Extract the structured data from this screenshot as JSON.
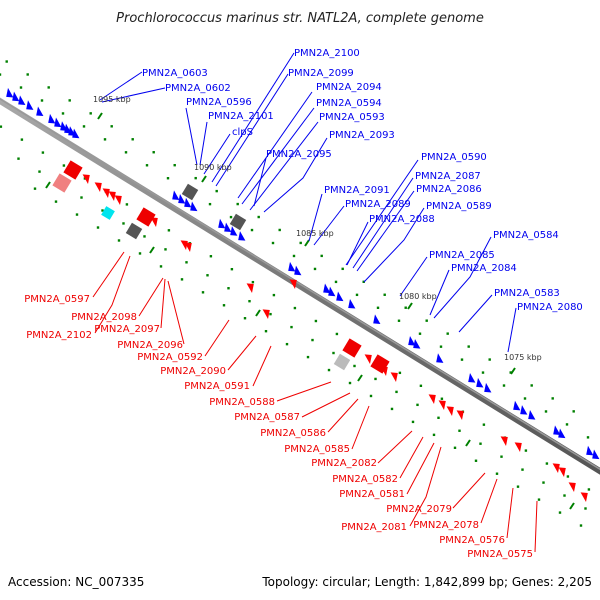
{
  "title": "Prochlorococcus marinus str. NATL2A, complete genome",
  "footer": {
    "accession": "Accession: NC_007335",
    "summary": "Topology: circular; Length: 1,842,899 bp; Genes: 2,205"
  },
  "colors": {
    "forward_gene": "#0000ff",
    "reverse_gene": "#ff0000",
    "backbone": "#808080",
    "tick": "#008000",
    "rna": "#00e5ee",
    "other": "#666666"
  },
  "kbp_labels": [
    "1095 kbp",
    "1090 kbp",
    "1085 kbp",
    "1080 kbp",
    "1075 kbp"
  ],
  "forward_labels": [
    "PMN2A_0603",
    "PMN2A_0602",
    "PMN2A_0596",
    "PMN2A_2101",
    "clpS",
    "PMN2A_2100",
    "PMN2A_2099",
    "PMN2A_2094",
    "PMN2A_0594",
    "PMN2A_0593",
    "PMN2A_2095",
    "PMN2A_2093",
    "PMN2A_0590",
    "PMN2A_2087",
    "PMN2A_2086",
    "PMN2A_0589",
    "PMN2A_2091",
    "PMN2A_2089",
    "PMN2A_2088",
    "PMN2A_0584",
    "PMN2A_2085",
    "PMN2A_2084",
    "PMN2A_0583",
    "PMN2A_2080"
  ],
  "reverse_labels": [
    "PMN2A_0597",
    "PMN2A_2098",
    "PMN2A_2102",
    "PMN2A_2097",
    "PMN2A_2096",
    "PMN2A_0592",
    "PMN2A_2090",
    "PMN2A_0591",
    "PMN2A_0588",
    "PMN2A_0587",
    "PMN2A_0586",
    "PMN2A_0585",
    "PMN2A_2082",
    "PMN2A_0582",
    "PMN2A_0581",
    "PMN2A_2079",
    "PMN2A_2081",
    "PMN2A_2078",
    "PMN2A_0576",
    "PMN2A_0575"
  ]
}
